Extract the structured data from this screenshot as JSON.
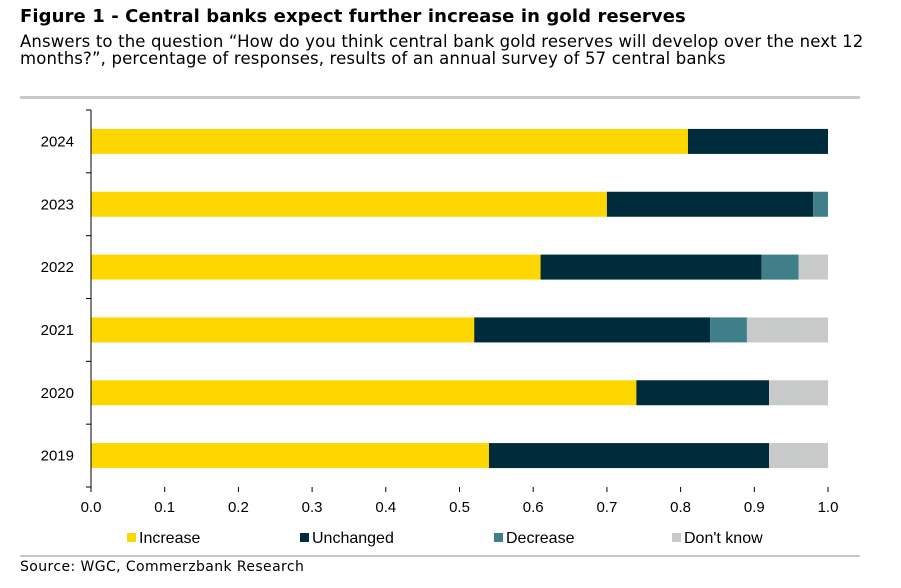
{
  "figure": {
    "title": "Figure 1 - Central banks expect further increase in gold reserves",
    "subtitle": "Answers to the question “How do you think central bank gold reserves will develop over the next 12 months?”, percentage of responses, results of an annual survey of 57 central banks",
    "source": "Source: WGC, Commerzbank Research"
  },
  "chart_data": {
    "type": "bar",
    "orientation": "horizontal",
    "stacked": true,
    "categories": [
      "2024",
      "2023",
      "2022",
      "2021",
      "2020",
      "2019"
    ],
    "series": [
      {
        "name": "Increase",
        "color": "#FFD700",
        "values": [
          0.81,
          0.7,
          0.61,
          0.52,
          0.74,
          0.54
        ]
      },
      {
        "name": "Unchanged",
        "color": "#002B3A",
        "values": [
          0.19,
          0.28,
          0.3,
          0.32,
          0.18,
          0.38
        ]
      },
      {
        "name": "Decrease",
        "color": "#3E7F89",
        "values": [
          0.0,
          0.02,
          0.05,
          0.05,
          0.0,
          0.0
        ]
      },
      {
        "name": "Don't know",
        "color": "#C8CACA",
        "values": [
          0.0,
          0.0,
          0.04,
          0.11,
          0.08,
          0.08
        ]
      }
    ],
    "xlim": [
      0,
      1
    ],
    "xticks": [
      "0.0",
      "0.1",
      "0.2",
      "0.3",
      "0.4",
      "0.5",
      "0.6",
      "0.7",
      "0.8",
      "0.9",
      "1.0"
    ],
    "legend_position": "bottom",
    "grid": false
  }
}
